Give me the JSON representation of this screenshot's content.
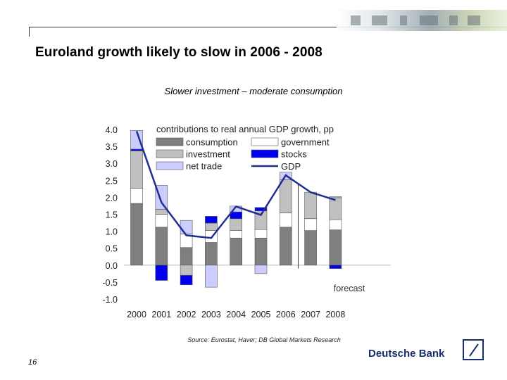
{
  "slide": {
    "title": "Euroland growth likely to slow in 2006 - 2008",
    "subtitle": "Slower investment – moderate consumption",
    "source": "Source: Eurostat, Haver; DB Global Markets Research",
    "page_number": "16",
    "brand": "Deutsche Bank"
  },
  "chart_data": {
    "type": "bar",
    "stacked": true,
    "title": "contributions to real annual GDP growth, pp",
    "categories": [
      "2000",
      "2001",
      "2002",
      "2003",
      "2004",
      "2005",
      "2006",
      "2007",
      "2008"
    ],
    "ylim": [
      -1.0,
      4.0
    ],
    "yticks": [
      4.0,
      3.5,
      3.0,
      2.5,
      2.0,
      1.5,
      1.0,
      0.5,
      0.0,
      -0.5,
      -1.0
    ],
    "ytick_labels": [
      "4.0",
      "3.5",
      "3.0",
      "2.5",
      "2.0",
      "1.5",
      "1.0",
      "0.5",
      "0.0",
      "-0.5",
      "-1.0"
    ],
    "grid": false,
    "legend_position": "top",
    "series": [
      {
        "name": "consumption",
        "color": "#7f7f7f",
        "values": [
          1.82,
          1.12,
          0.52,
          0.67,
          0.8,
          0.8,
          1.12,
          1.02,
          1.04
        ]
      },
      {
        "name": "government",
        "color": "#ffffff",
        "values": [
          0.45,
          0.38,
          0.4,
          0.35,
          0.22,
          0.25,
          0.42,
          0.35,
          0.3
        ]
      },
      {
        "name": "investment",
        "color": "#c0c0c0",
        "values": [
          1.1,
          0.15,
          -0.3,
          0.22,
          0.35,
          0.55,
          0.98,
          0.78,
          0.65
        ]
      },
      {
        "name": "stocks",
        "color": "#0000ee",
        "values": [
          0.05,
          -0.45,
          -0.28,
          0.2,
          0.2,
          0.1,
          0.0,
          0.0,
          -0.1
        ]
      },
      {
        "name": "net trade",
        "color": "#ccccff",
        "values": [
          0.55,
          0.7,
          0.4,
          -0.65,
          0.17,
          -0.25,
          0.22,
          0.0,
          0.03
        ]
      }
    ],
    "line": {
      "name": "GDP",
      "color": "#1f2f8f",
      "values": [
        3.95,
        1.85,
        0.88,
        0.8,
        1.73,
        1.48,
        2.65,
        2.15,
        1.92
      ]
    },
    "annotation": {
      "text": "forecast",
      "after_category": "2006"
    }
  }
}
